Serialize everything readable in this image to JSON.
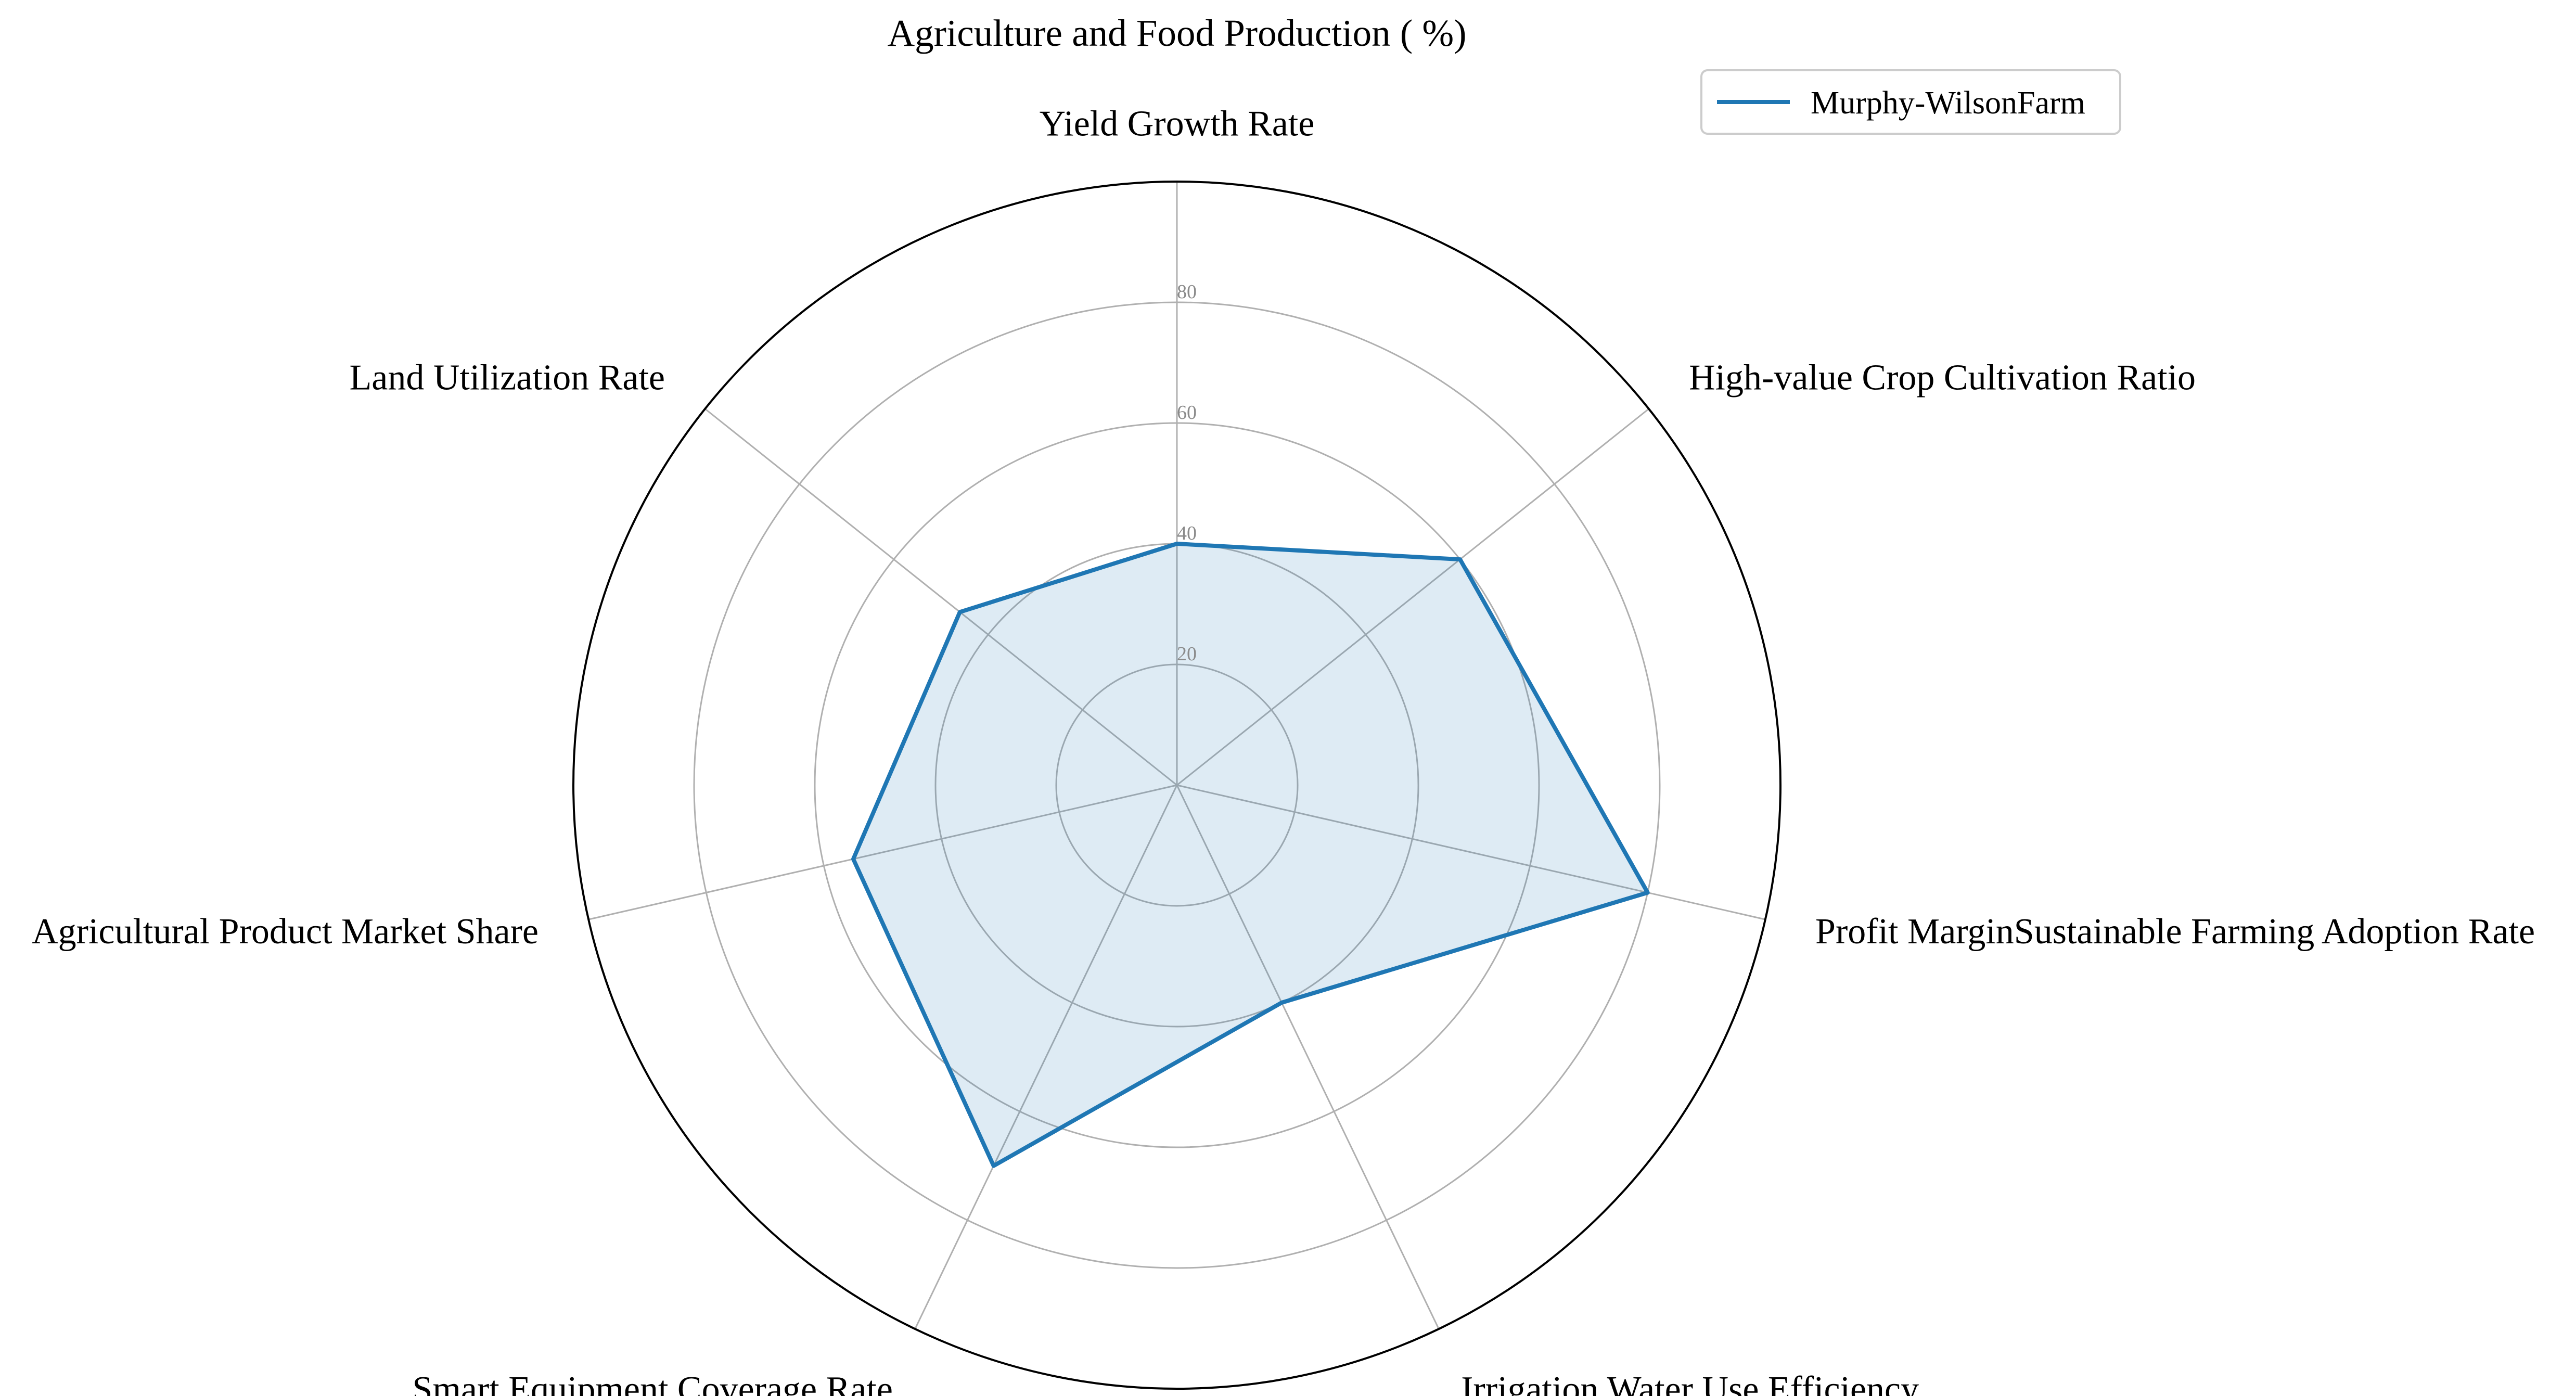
{
  "chart_data": {
    "type": "radar",
    "title": "Agriculture and Food Production ( %)",
    "axes": [
      "Yield Growth Rate",
      "High-value Crop Cultivation Ratio",
      "Profit MarginSustainable Farming Adoption Rate",
      "Irrigation Water Use Efficiency",
      "Smart Equipment Coverage Rate",
      "Agricultural Product Market Share",
      "Land Utilization Rate"
    ],
    "rlim": [
      0,
      100
    ],
    "rticks": [
      20,
      40,
      60,
      80
    ],
    "rtick_labels": [
      "20",
      "40",
      "60",
      "80"
    ],
    "grid": true,
    "legend": {
      "placement": "top-right"
    },
    "series": [
      {
        "name": "Murphy-WilsonFarm",
        "color": "#1f77b4",
        "fill_color": "#1f77b4",
        "values": [
          40,
          60,
          80,
          40,
          70,
          55,
          46
        ]
      }
    ]
  }
}
